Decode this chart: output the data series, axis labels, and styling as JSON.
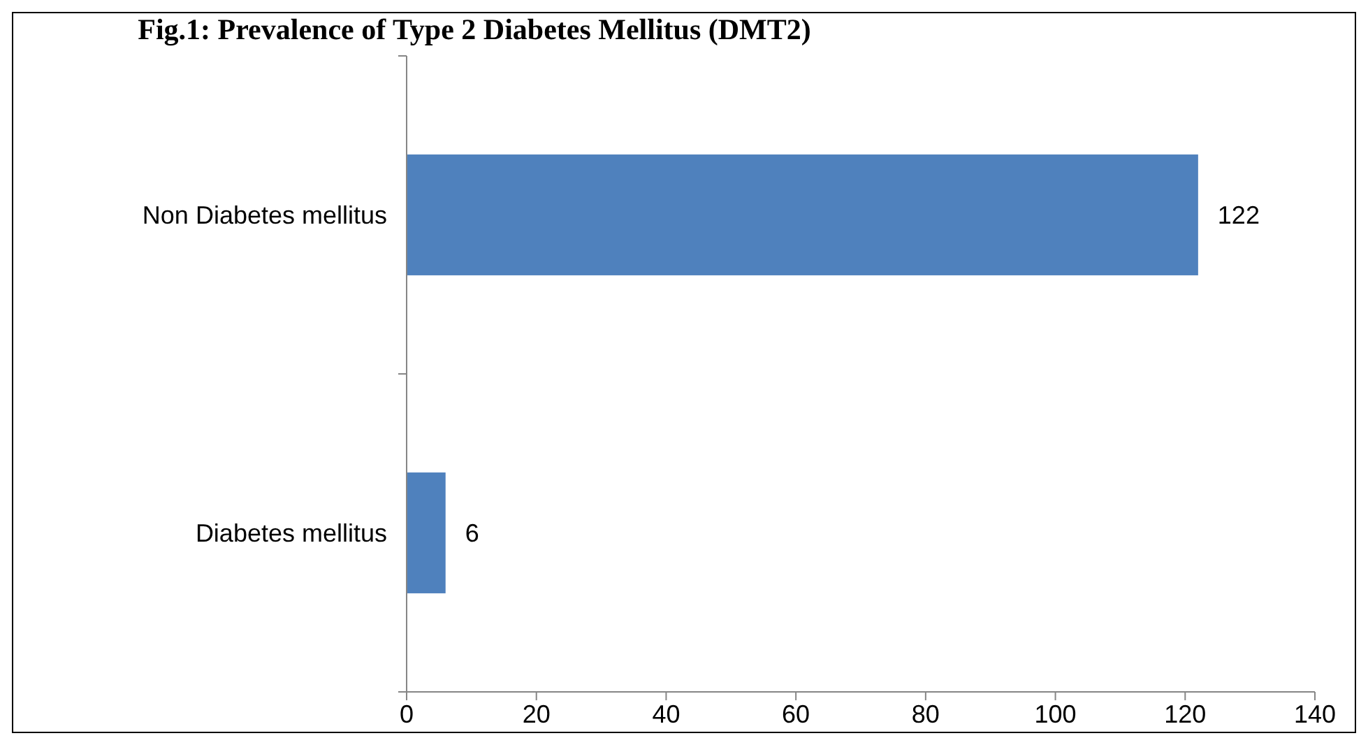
{
  "chart_data": {
    "type": "bar",
    "orientation": "horizontal",
    "title": "Fig.1: Prevalence of Type 2 Diabetes Mellitus (DMT2)",
    "categories": [
      "Non Diabetes mellitus",
      "Diabetes mellitus"
    ],
    "values": [
      122,
      6
    ],
    "color": "#4f81bd",
    "xlim": [
      0,
      140
    ],
    "xticks": [
      0,
      20,
      40,
      60,
      80,
      100,
      120,
      140
    ],
    "grid": false,
    "data_labels": true
  }
}
